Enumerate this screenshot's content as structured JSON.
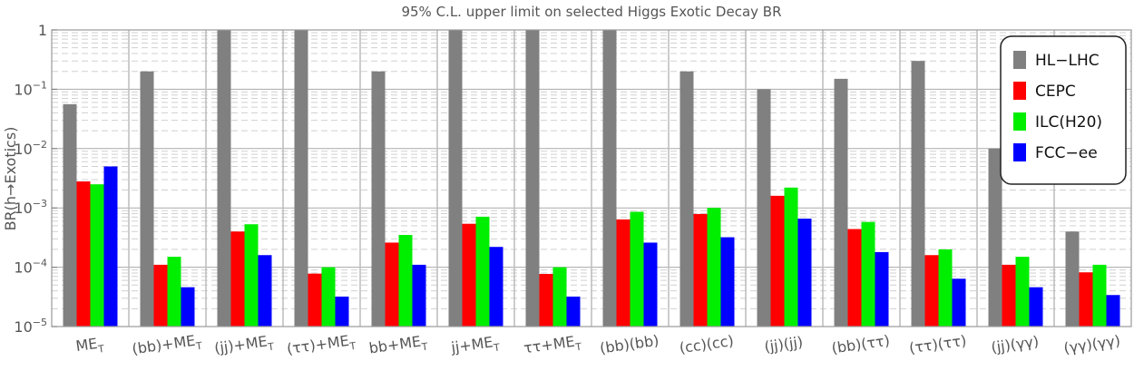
{
  "chart_data": {
    "type": "bar",
    "title": "95% C.L. upper limit on selected Higgs Exotic Decay BR",
    "ylabel": "BR(h→Exotics)",
    "yscale": "log",
    "ylim": [
      1e-05,
      1
    ],
    "yticks": [
      {
        "value": 1,
        "label": "1"
      },
      {
        "value": 0.1,
        "label": "10",
        "sup": "−1"
      },
      {
        "value": 0.01,
        "label": "10",
        "sup": "−2"
      },
      {
        "value": 0.001,
        "label": "10",
        "sup": "−3"
      },
      {
        "value": 0.0001,
        "label": "10",
        "sup": "−4"
      },
      {
        "value": 1e-05,
        "label": "10",
        "sup": "−5"
      }
    ],
    "grid": true,
    "legend_position": "top-right",
    "categories": [
      {
        "pre": "ME",
        "sub": "T",
        "post": ""
      },
      {
        "pre": "(bb)+ME",
        "sub": "T",
        "post": ""
      },
      {
        "pre": "(jj)+ME",
        "sub": "T",
        "post": ""
      },
      {
        "pre": "(ττ)+ME",
        "sub": "T",
        "post": ""
      },
      {
        "pre": "bb+ME",
        "sub": "T",
        "post": ""
      },
      {
        "pre": "jj+ME",
        "sub": "T",
        "post": ""
      },
      {
        "pre": "ττ+ME",
        "sub": "T",
        "post": ""
      },
      {
        "pre": "(bb)(bb)",
        "sub": "",
        "post": ""
      },
      {
        "pre": "(cc)(cc)",
        "sub": "",
        "post": ""
      },
      {
        "pre": "(jj)(jj)",
        "sub": "",
        "post": ""
      },
      {
        "pre": "(bb)(ττ)",
        "sub": "",
        "post": ""
      },
      {
        "pre": "(ττ)(ττ)",
        "sub": "",
        "post": ""
      },
      {
        "pre": "(jj)(γγ)",
        "sub": "",
        "post": ""
      },
      {
        "pre": "(γγ)(γγ)",
        "sub": "",
        "post": ""
      }
    ],
    "series": [
      {
        "name": "HL−LHC",
        "color": "#808080",
        "values": [
          0.056,
          0.2,
          1,
          1,
          0.2,
          1,
          1,
          1,
          0.2,
          0.1,
          0.15,
          0.3,
          0.01,
          0.0004
        ]
      },
      {
        "name": "CEPC",
        "color": "#ff0000",
        "values": [
          0.0028,
          0.00011,
          0.0004,
          7.8e-05,
          0.00026,
          0.00054,
          7.7e-05,
          0.00064,
          0.00079,
          0.0016,
          0.00044,
          0.00016,
          0.00011,
          8.2e-05
        ]
      },
      {
        "name": "ILC(H20)",
        "color": "#00ee00",
        "values": [
          0.0025,
          0.00015,
          0.00053,
          0.0001,
          0.00035,
          0.00071,
          0.0001,
          0.00086,
          0.001,
          0.0022,
          0.00058,
          0.0002,
          0.00015,
          0.00011
        ]
      },
      {
        "name": "FCC−ee",
        "color": "#0000ff",
        "values": [
          0.005,
          4.6e-05,
          0.00016,
          3.2e-05,
          0.00011,
          0.00022,
          3.2e-05,
          0.00026,
          0.00032,
          0.00066,
          0.00018,
          6.4e-05,
          4.6e-05,
          3.4e-05
        ]
      }
    ]
  }
}
